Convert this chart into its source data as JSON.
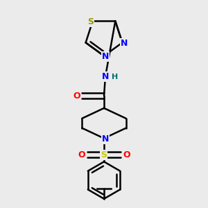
{
  "bg_color": "#ebebeb",
  "atom_colors": {
    "C": "#000000",
    "N": "#0000ff",
    "O": "#ff0000",
    "S_ring": "#999900",
    "S_sulfonyl": "#cccc00",
    "H": "#007070"
  },
  "bond_color": "#000000"
}
